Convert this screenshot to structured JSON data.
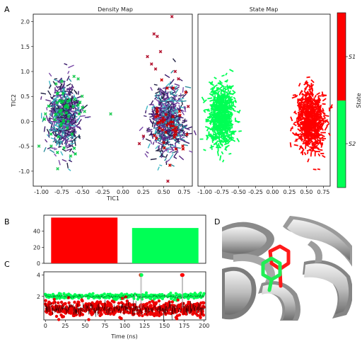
{
  "panel_letters": {
    "a": "A",
    "b": "B",
    "c": "C",
    "d": "D"
  },
  "colors": {
    "state1": "#ff0000",
    "state2": "#00ff55",
    "density_dark": "#5b2a86",
    "density_light": "#3fb8c6",
    "frame": "#000000"
  },
  "chart_data": [
    {
      "type": "scatter",
      "title": "Density Map",
      "xlabel": "TIC1",
      "ylabel": "TIC2",
      "xlim": [
        -1.1,
        0.85
      ],
      "ylim": [
        -1.3,
        2.15
      ],
      "xticks": [
        "-1.00",
        "-0.75",
        "-0.50",
        "-0.25",
        "0.00",
        "0.25",
        "0.50",
        "0.75"
      ],
      "yticks": [
        "-1.0",
        "-0.5",
        "0.0",
        "0.5",
        "1.0",
        "1.5",
        "2.0"
      ],
      "xtick_values": [
        -1.0,
        -0.75,
        -0.5,
        -0.25,
        0.0,
        0.25,
        0.5,
        0.75
      ],
      "ytick_values": [
        -1.0,
        -0.5,
        0.0,
        0.5,
        1.0,
        1.5,
        2.0
      ],
      "clusters": [
        {
          "center": [
            -0.72,
            0.1
          ],
          "spread": [
            0.09,
            0.32
          ],
          "color_outlier": "#00cc44"
        },
        {
          "center": [
            0.55,
            0.0
          ],
          "spread": [
            0.1,
            0.34
          ],
          "color_outlier": "#cc0000"
        }
      ],
      "outliers_red": [
        [
          0.6,
          2.1
        ],
        [
          0.38,
          1.75
        ],
        [
          0.42,
          1.7
        ],
        [
          0.46,
          1.4
        ],
        [
          0.3,
          1.3
        ],
        [
          0.35,
          1.15
        ],
        [
          0.64,
          1.0
        ],
        [
          0.68,
          0.85
        ],
        [
          0.4,
          1.05
        ],
        [
          0.2,
          -0.45
        ],
        [
          0.25,
          -0.3
        ],
        [
          0.55,
          -1.2
        ],
        [
          0.8,
          0.3
        ]
      ],
      "outliers_green": [
        [
          -0.6,
          0.9
        ],
        [
          -0.55,
          0.85
        ],
        [
          -0.82,
          0.75
        ],
        [
          -0.5,
          0.5
        ],
        [
          -0.47,
          0.2
        ],
        [
          -0.95,
          0.15
        ],
        [
          -1.03,
          -0.5
        ],
        [
          -0.88,
          -0.5
        ],
        [
          -0.8,
          -0.95
        ],
        [
          -0.15,
          0.15
        ],
        [
          -0.64,
          -0.7
        ],
        [
          -0.75,
          0.8
        ]
      ]
    },
    {
      "type": "scatter",
      "title": "State Map",
      "xlim": [
        -1.1,
        0.85
      ],
      "ylim": [
        -1.3,
        2.15
      ],
      "xticks": [
        "-1.00",
        "-0.75",
        "-0.50",
        "-0.25",
        "0.00",
        "0.25",
        "0.50",
        "0.75"
      ],
      "xtick_values": [
        -1.0,
        -0.75,
        -0.5,
        -0.25,
        0.0,
        0.25,
        0.5,
        0.75
      ],
      "clusters": [
        {
          "state": "S2",
          "center": [
            -0.75,
            0.1
          ],
          "spread": [
            0.09,
            0.3
          ],
          "color": "#00ff55"
        },
        {
          "state": "S1",
          "center": [
            0.55,
            0.0
          ],
          "spread": [
            0.1,
            0.32
          ],
          "color": "#ff0000"
        }
      ]
    },
    {
      "type": "colorbar",
      "label": "State",
      "entries": [
        {
          "name": "S1",
          "sub": "1",
          "color": "#ff0000"
        },
        {
          "name": "S2",
          "sub": "2",
          "color": "#00ff55"
        }
      ]
    },
    {
      "type": "bar",
      "categories": [
        "S1",
        "S2"
      ],
      "values": [
        57,
        44
      ],
      "colors": [
        "#ff0000",
        "#00ff55"
      ],
      "ylim": [
        0,
        60
      ],
      "yticks": [
        "0",
        "20",
        "40"
      ],
      "ytick_values": [
        0,
        20,
        40
      ]
    },
    {
      "type": "line",
      "xlabel": "Time (ns)",
      "xlim": [
        -2,
        202
      ],
      "ylim": [
        -0.2,
        4.3
      ],
      "xticks": [
        "0",
        "25",
        "50",
        "75",
        "100",
        "125",
        "150",
        "175",
        "200"
      ],
      "xtick_values": [
        0,
        25,
        50,
        75,
        100,
        125,
        150,
        175,
        200
      ],
      "yticks": [
        "2",
        "4"
      ],
      "ytick_values": [
        2,
        4
      ],
      "series": [
        {
          "state": "S2",
          "level": 2,
          "color": "#00ff55"
        },
        {
          "state": "S1",
          "level": 0.8,
          "color": "#ff0000"
        }
      ],
      "spikes": [
        {
          "x": 120,
          "y": 4,
          "color": "#ff0000"
        },
        {
          "x": 121,
          "y": 4,
          "color": "#00ff55"
        },
        {
          "x": 172,
          "y": 4,
          "color": "#ff0000"
        },
        {
          "x": 173,
          "y": 4,
          "color": "#ff0000"
        }
      ],
      "gaps": [
        [
          7,
          9
        ],
        [
          47,
          51
        ],
        [
          112,
          118
        ],
        [
          150,
          153
        ]
      ]
    }
  ]
}
